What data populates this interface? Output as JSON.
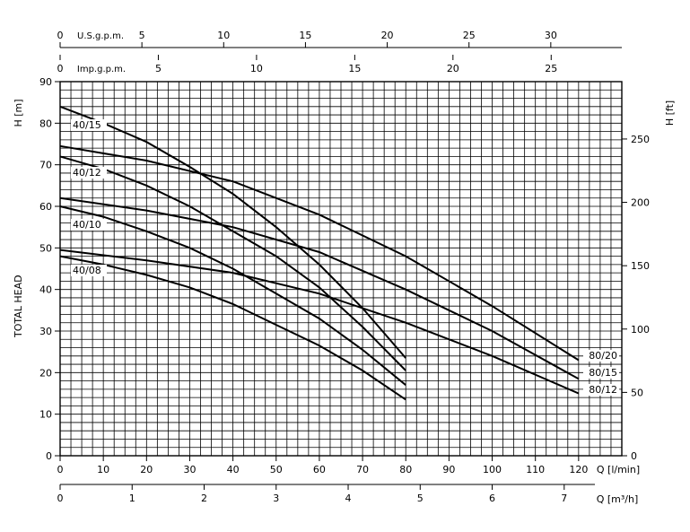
{
  "chart_data": {
    "type": "line",
    "y_left": {
      "label": "H [m]",
      "range": [
        0,
        90
      ],
      "ticks": [
        "0",
        "10",
        "20",
        "30",
        "40",
        "50",
        "60",
        "70",
        "80",
        "90"
      ]
    },
    "y_right": {
      "label": "H [ft]",
      "ticks": [
        "0",
        "50",
        "100",
        "150",
        "200",
        "250"
      ],
      "values": [
        0,
        50,
        100,
        150,
        200,
        250
      ]
    },
    "y_title": "TOTAL HEAD",
    "x_lmin": {
      "label": "Q [l/min]",
      "range": [
        0,
        130
      ],
      "ticks": [
        "0",
        "10",
        "20",
        "30",
        "40",
        "50",
        "60",
        "70",
        "80",
        "90",
        "100",
        "110",
        "120"
      ]
    },
    "x_m3h": {
      "label": "Q [m³/h]",
      "ticks": [
        "0",
        "1",
        "2",
        "3",
        "4",
        "5",
        "6",
        "7"
      ],
      "values": [
        0,
        1,
        2,
        3,
        4,
        5,
        6,
        7
      ]
    },
    "x_usgpm": {
      "label": "U.S.g.p.m.",
      "ticks": [
        "0",
        "5",
        "10",
        "15",
        "20",
        "25",
        "30"
      ],
      "values": [
        0,
        5,
        10,
        15,
        20,
        25,
        30
      ]
    },
    "x_impgpm": {
      "label": "Imp.g.p.m.",
      "ticks": [
        "0",
        "5",
        "10",
        "15",
        "20",
        "25"
      ],
      "values": [
        0,
        5,
        10,
        15,
        20,
        25
      ]
    },
    "series": [
      {
        "name": "40/15",
        "points": [
          [
            0,
            84
          ],
          [
            10,
            80
          ],
          [
            20,
            75.5
          ],
          [
            30,
            69.5
          ],
          [
            40,
            63
          ],
          [
            50,
            55
          ],
          [
            60,
            46
          ],
          [
            70,
            35.5
          ],
          [
            80,
            23.5
          ]
        ]
      },
      {
        "name": "40/12",
        "points": [
          [
            0,
            72
          ],
          [
            10,
            69
          ],
          [
            20,
            65
          ],
          [
            30,
            60
          ],
          [
            40,
            54
          ],
          [
            50,
            48
          ],
          [
            60,
            40.5
          ],
          [
            70,
            31
          ],
          [
            80,
            20.5
          ]
        ]
      },
      {
        "name": "40/10",
        "points": [
          [
            0,
            60
          ],
          [
            10,
            57.5
          ],
          [
            20,
            54
          ],
          [
            30,
            50
          ],
          [
            40,
            45
          ],
          [
            50,
            39
          ],
          [
            60,
            33
          ],
          [
            70,
            25.5
          ],
          [
            80,
            17
          ]
        ]
      },
      {
        "name": "40/08",
        "points": [
          [
            0,
            48
          ],
          [
            10,
            46
          ],
          [
            20,
            43.5
          ],
          [
            30,
            40.5
          ],
          [
            40,
            36.5
          ],
          [
            50,
            31.5
          ],
          [
            60,
            26.5
          ],
          [
            70,
            20.5
          ],
          [
            80,
            13.5
          ]
        ]
      },
      {
        "name": "80/20",
        "points": [
          [
            0,
            74.5
          ],
          [
            20,
            71
          ],
          [
            40,
            66
          ],
          [
            60,
            58
          ],
          [
            80,
            48
          ],
          [
            100,
            36
          ],
          [
            120,
            23
          ]
        ]
      },
      {
        "name": "80/15",
        "points": [
          [
            0,
            62
          ],
          [
            20,
            59
          ],
          [
            40,
            55
          ],
          [
            60,
            49
          ],
          [
            80,
            40
          ],
          [
            100,
            30
          ],
          [
            120,
            18.5
          ]
        ]
      },
      {
        "name": "80/12",
        "points": [
          [
            0,
            49.5
          ],
          [
            20,
            47
          ],
          [
            40,
            44
          ],
          [
            60,
            39
          ],
          [
            80,
            32
          ],
          [
            100,
            24
          ],
          [
            120,
            15
          ]
        ]
      }
    ],
    "grid": true
  }
}
